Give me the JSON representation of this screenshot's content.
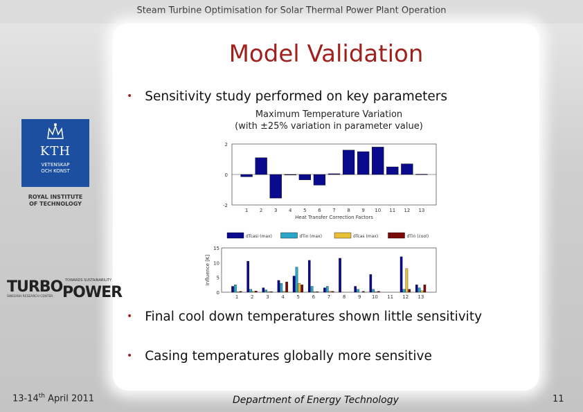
{
  "header": {
    "title": "Steam Turbine Optimisation for Solar Thermal Power Plant Operation"
  },
  "slide": {
    "title": "Model Validation",
    "bullets": [
      "Sensitivity study performed on key parameters",
      "Final cool down temperatures shown little sensitivity",
      "Casing temperatures globally more sensitive"
    ]
  },
  "logos": {
    "kth": {
      "mark": "KTH",
      "sub": "VETENSKAP\nOCH KONST",
      "caption_line1": "ROYAL INSTITUTE",
      "caption_line2": "OF TECHNOLOGY"
    },
    "turbopower": {
      "part1": "TURBO",
      "part2": "POWER",
      "tag": "TOWARDS SUSTAINABILITY",
      "sub": "SWEDISH RESEARCH CENTER"
    }
  },
  "footer": {
    "date_prefix": "13-14",
    "date_sup": "th",
    "date_suffix": " April 2011",
    "department": "Department of Energy Technology",
    "page": "11"
  },
  "chart_data": [
    {
      "type": "bar",
      "title_line1": "Maximum Temperature Variation",
      "title_line2": "(with ±25% variation in parameter value)",
      "xlabel": "Heat Transfer Correction Factors",
      "ylabel": "",
      "categories": [
        "1",
        "2",
        "3",
        "4",
        "5",
        "6",
        "7",
        "8",
        "9",
        "10",
        "11",
        "12",
        "13"
      ],
      "values": [
        -0.15,
        1.1,
        -1.55,
        0,
        -0.35,
        -0.7,
        0.05,
        1.6,
        1.5,
        1.8,
        0.5,
        0.7,
        0.02
      ],
      "ylim": [
        -2,
        2
      ],
      "color": "#0a0a8c"
    },
    {
      "type": "bar",
      "ylabel": "Influence [K]",
      "categories": [
        "1",
        "2",
        "3",
        "4",
        "5",
        "6",
        "7",
        "8",
        "9",
        "10",
        "11",
        "12",
        "13"
      ],
      "ylim": [
        0,
        15
      ],
      "series": [
        {
          "name": "dTcasi (max)",
          "color": "#0a0a8c",
          "values": [
            2,
            10.5,
            1.5,
            4,
            5.5,
            10.8,
            1.5,
            11.5,
            2,
            6,
            0,
            12,
            2.5
          ]
        },
        {
          "name": "dTin (max)",
          "color": "#2aa6c8",
          "values": [
            2.5,
            1,
            0.8,
            3,
            8.5,
            2,
            2,
            0,
            1,
            1,
            0,
            1,
            1.5
          ]
        },
        {
          "name": "dTcas (max)",
          "color": "#e8c038",
          "values": [
            0.2,
            0.3,
            0.2,
            0.3,
            3,
            0.2,
            0.3,
            0,
            0,
            0.2,
            0,
            8,
            0.5
          ]
        },
        {
          "name": "dTin (cool)",
          "color": "#7a0a0a",
          "values": [
            0.3,
            0.4,
            0.2,
            3.5,
            2.5,
            0.2,
            0.3,
            0,
            0.3,
            0.3,
            0,
            1,
            2.5
          ]
        }
      ]
    }
  ]
}
